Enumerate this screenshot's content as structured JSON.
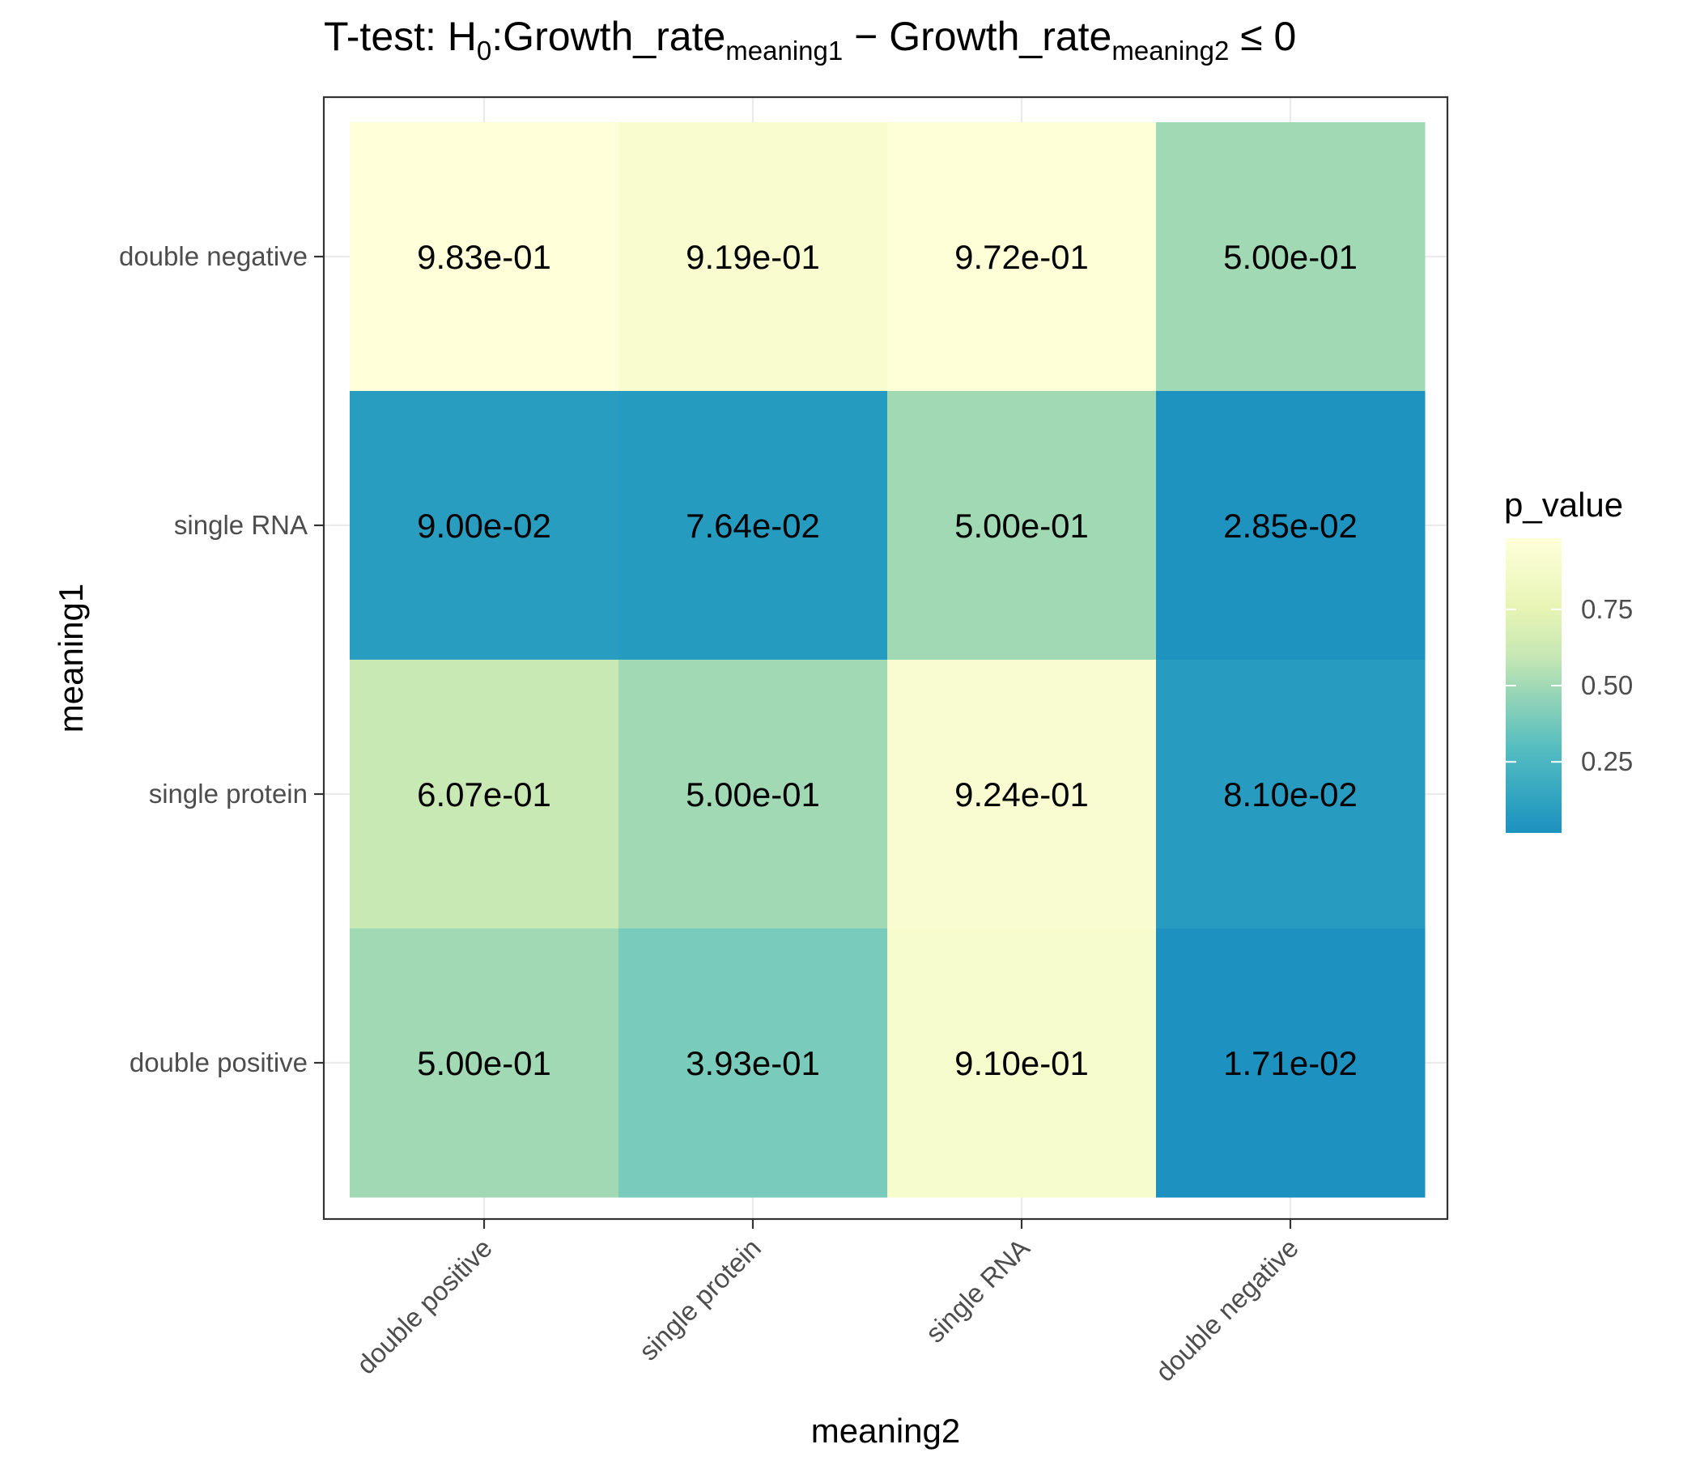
{
  "chart_data": {
    "type": "heatmap",
    "title": {
      "prefix": "T-test: H",
      "sub0": "0",
      "mid1": ":Growth_rate",
      "sub1": "meaning1",
      "minus": " − ",
      "mid2": "Growth_rate",
      "sub2": "meaning2",
      "suffix": " ≤ 0"
    },
    "xlabel": "meaning2",
    "ylabel": "meaning1",
    "x_categories": [
      "double positive",
      "single protein",
      "single RNA",
      "double negative"
    ],
    "y_categories": [
      "double negative",
      "single RNA",
      "single protein",
      "double positive"
    ],
    "values": [
      [
        0.983,
        0.919,
        0.972,
        0.5
      ],
      [
        0.09,
        0.0764,
        0.5,
        0.0285
      ],
      [
        0.607,
        0.5,
        0.924,
        0.081
      ],
      [
        0.5,
        0.393,
        0.91,
        0.0171
      ]
    ],
    "cell_labels": [
      [
        "9.83e-01",
        "9.19e-01",
        "9.72e-01",
        "5.00e-01"
      ],
      [
        "9.00e-02",
        "7.64e-02",
        "5.00e-01",
        "2.85e-02"
      ],
      [
        "6.07e-01",
        "5.00e-01",
        "9.24e-01",
        "8.10e-02"
      ],
      [
        "5.00e-01",
        "3.93e-01",
        "9.10e-01",
        "1.71e-02"
      ]
    ],
    "legend": {
      "title": "p_value",
      "placement": "right",
      "range": [
        0.0171,
        0.983
      ],
      "breaks": [
        0.25,
        0.5,
        0.75
      ],
      "break_labels": [
        "0.25",
        "0.50",
        "0.75"
      ]
    },
    "colorscale": [
      {
        "v": 0.0171,
        "color": "#1d91c0"
      },
      {
        "v": 0.1,
        "color": "#2a9fc0"
      },
      {
        "v": 0.3,
        "color": "#56bec0"
      },
      {
        "v": 0.5,
        "color": "#a1d9b5"
      },
      {
        "v": 0.6,
        "color": "#c7e8b4"
      },
      {
        "v": 0.75,
        "color": "#e6f4b4"
      },
      {
        "v": 0.983,
        "color": "#ffffd9"
      }
    ],
    "grid": true,
    "theme": "bw"
  }
}
